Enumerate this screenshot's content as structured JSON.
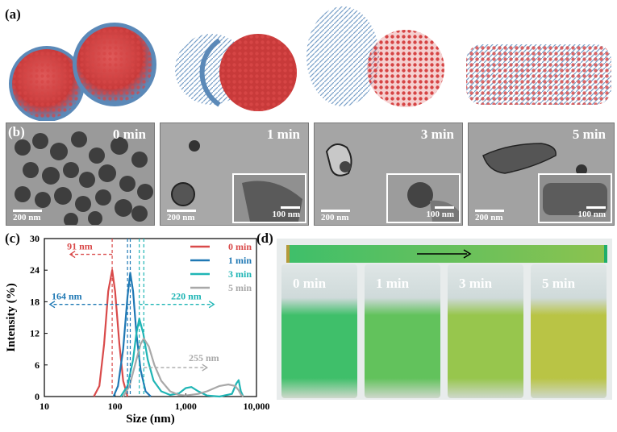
{
  "panels": {
    "a_label": "(a)",
    "b_label": "(b)",
    "c_label": "(c)",
    "d_label": "(d)"
  },
  "tem": [
    {
      "time": "0 min",
      "scale": "200 nm"
    },
    {
      "time": "1 min",
      "scale": "200 nm",
      "inset_scale": "100 nm"
    },
    {
      "time": "3 min",
      "scale": "200 nm",
      "inset_scale": "100 nm"
    },
    {
      "time": "5 min",
      "scale": "200 nm",
      "inset_scale": "100 nm"
    }
  ],
  "vials": [
    {
      "label": "0 min",
      "color": "#3fbf6a"
    },
    {
      "label": "1 min",
      "color": "#62c25c"
    },
    {
      "label": "3 min",
      "color": "#97c64d"
    },
    {
      "label": "5 min",
      "color": "#b9c445"
    }
  ],
  "chart_data": {
    "type": "line",
    "xlabel": "Size (nm)",
    "ylabel": "Intensity (%)",
    "xscale": "log",
    "xlim": [
      10,
      10000
    ],
    "ylim": [
      0,
      30
    ],
    "xticks": [
      "10",
      "100",
      "1,000",
      "10,000"
    ],
    "yticks": [
      "0",
      "6",
      "12",
      "18",
      "24",
      "30"
    ],
    "legend_position": "top-right",
    "series": [
      {
        "name": "0 min",
        "color": "#d94a4a",
        "x": [
          50,
          60,
          70,
          80,
          91,
          100,
          115,
          130,
          150
        ],
        "y": [
          0,
          2,
          10,
          20,
          24,
          20,
          10,
          3,
          0
        ]
      },
      {
        "name": "1 min",
        "color": "#1f78b4",
        "x": [
          95,
          110,
          130,
          150,
          164,
          180,
          200,
          230,
          270,
          320
        ],
        "y": [
          0,
          2,
          9,
          19,
          23.5,
          20,
          12,
          5,
          1,
          0
        ]
      },
      {
        "name": "3 min",
        "color": "#1fb5b5",
        "x": [
          120,
          150,
          180,
          200,
          220,
          250,
          290,
          350,
          450,
          600,
          800,
          1000,
          1200,
          1500,
          2000,
          3000,
          4500,
          5200,
          5600,
          6000,
          6500
        ],
        "y": [
          0,
          2,
          7,
          12,
          14.8,
          12,
          7,
          3,
          1,
          0.3,
          0.6,
          1.6,
          1.8,
          1.0,
          0.2,
          0,
          0.5,
          2.5,
          3.1,
          1.0,
          0
        ]
      },
      {
        "name": "5 min",
        "color": "#a8a8a8",
        "x": [
          130,
          160,
          200,
          230,
          255,
          300,
          360,
          450,
          600,
          800,
          1000,
          1500,
          2000,
          3000,
          4000,
          5000,
          5600,
          6000,
          6500
        ],
        "y": [
          0,
          2,
          7,
          10,
          11,
          9.5,
          6,
          3,
          1,
          0.3,
          0.2,
          0.5,
          1.0,
          2.0,
          2.3,
          2.0,
          1.2,
          0.4,
          0
        ]
      }
    ],
    "annotations": [
      {
        "text": "91 nm",
        "color": "#d94a4a"
      },
      {
        "text": "164 nm",
        "color": "#1f78b4"
      },
      {
        "text": "220 nm",
        "color": "#1fb5b5"
      },
      {
        "text": "255 nm",
        "color": "#a8a8a8"
      }
    ]
  }
}
